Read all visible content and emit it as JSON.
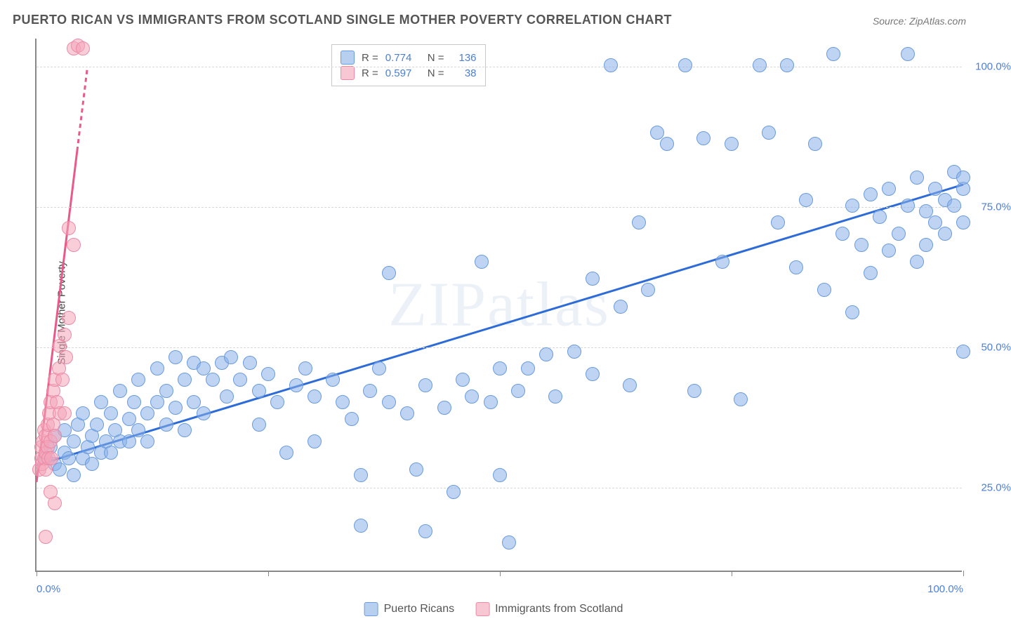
{
  "title": "PUERTO RICAN VS IMMIGRANTS FROM SCOTLAND SINGLE MOTHER POVERTY CORRELATION CHART",
  "source": "Source: ZipAtlas.com",
  "ylabel": "Single Mother Poverty",
  "watermark": "ZIPatlas",
  "chart": {
    "type": "scatter",
    "background_color": "#ffffff",
    "grid_color": "#d8d8d8",
    "axis_color": "#888888",
    "tick_label_color": "#4a7fd8",
    "tick_fontsize": 15,
    "title_fontsize": 18,
    "title_color": "#555555",
    "xlim": [
      0,
      100
    ],
    "ylim": [
      10,
      105
    ],
    "ytick_positions": [
      25,
      50,
      75,
      100
    ],
    "ytick_labels": [
      "25.0%",
      "50.0%",
      "75.0%",
      "100.0%"
    ],
    "xtick_positions": [
      0,
      25,
      50,
      75,
      100
    ],
    "xtick_labels_shown": {
      "0": "0.0%",
      "100": "100.0%"
    },
    "marker_radius": 10,
    "marker_stroke_width": 1.5,
    "trend_line_width": 3
  },
  "series": [
    {
      "name": "Puerto Ricans",
      "fill_color": "rgba(137, 176, 232, 0.55)",
      "stroke_color": "#6a9be0",
      "swatch_fill": "#b8d0f0",
      "swatch_border": "#6a9be0",
      "trend_color": "#2d6cd8",
      "R": "0.774",
      "N": "136",
      "trend": {
        "x1": 0,
        "y1": 29,
        "x2": 100,
        "y2": 79
      },
      "points": [
        [
          1,
          30
        ],
        [
          1.5,
          32
        ],
        [
          2,
          29
        ],
        [
          2,
          34
        ],
        [
          2.5,
          28
        ],
        [
          3,
          31
        ],
        [
          3,
          35
        ],
        [
          3.5,
          30
        ],
        [
          4,
          33
        ],
        [
          4,
          27
        ],
        [
          4.5,
          36
        ],
        [
          5,
          30
        ],
        [
          5,
          38
        ],
        [
          5.5,
          32
        ],
        [
          6,
          34
        ],
        [
          6,
          29
        ],
        [
          6.5,
          36
        ],
        [
          7,
          31
        ],
        [
          7,
          40
        ],
        [
          7.5,
          33
        ],
        [
          8,
          38
        ],
        [
          8,
          31
        ],
        [
          8.5,
          35
        ],
        [
          9,
          42
        ],
        [
          9,
          33
        ],
        [
          10,
          37
        ],
        [
          10,
          33
        ],
        [
          10.5,
          40
        ],
        [
          11,
          35
        ],
        [
          11,
          44
        ],
        [
          12,
          38
        ],
        [
          12,
          33
        ],
        [
          13,
          40
        ],
        [
          13,
          46
        ],
        [
          14,
          42
        ],
        [
          14,
          36
        ],
        [
          15,
          48
        ],
        [
          15,
          39
        ],
        [
          16,
          44
        ],
        [
          16,
          35
        ],
        [
          17,
          47
        ],
        [
          17,
          40
        ],
        [
          18,
          46
        ],
        [
          18,
          38
        ],
        [
          19,
          44
        ],
        [
          20,
          47
        ],
        [
          20.5,
          41
        ],
        [
          21,
          48
        ],
        [
          22,
          44
        ],
        [
          23,
          47
        ],
        [
          24,
          42
        ],
        [
          24,
          36
        ],
        [
          25,
          45
        ],
        [
          26,
          40
        ],
        [
          27,
          31
        ],
        [
          28,
          43
        ],
        [
          29,
          46
        ],
        [
          30,
          41
        ],
        [
          30,
          33
        ],
        [
          32,
          44
        ],
        [
          33,
          40
        ],
        [
          34,
          37
        ],
        [
          35,
          18
        ],
        [
          35,
          27
        ],
        [
          36,
          42
        ],
        [
          37,
          46
        ],
        [
          38,
          40
        ],
        [
          38,
          63
        ],
        [
          40,
          38
        ],
        [
          41,
          28
        ],
        [
          42,
          43
        ],
        [
          42,
          17
        ],
        [
          44,
          39
        ],
        [
          45,
          24
        ],
        [
          46,
          44
        ],
        [
          47,
          41
        ],
        [
          48,
          65
        ],
        [
          49,
          40
        ],
        [
          50,
          46
        ],
        [
          50,
          27
        ],
        [
          51,
          15
        ],
        [
          52,
          42
        ],
        [
          53,
          46
        ],
        [
          55,
          48.5
        ],
        [
          56,
          41
        ],
        [
          58,
          49
        ],
        [
          60,
          62
        ],
        [
          60,
          45
        ],
        [
          62,
          100
        ],
        [
          63,
          57
        ],
        [
          64,
          43
        ],
        [
          65,
          72
        ],
        [
          66,
          60
        ],
        [
          67,
          88
        ],
        [
          68,
          86
        ],
        [
          70,
          100
        ],
        [
          71,
          42
        ],
        [
          72,
          87
        ],
        [
          74,
          65
        ],
        [
          75,
          86
        ],
        [
          76,
          40.5
        ],
        [
          78,
          100
        ],
        [
          79,
          88
        ],
        [
          80,
          72
        ],
        [
          81,
          100
        ],
        [
          82,
          64
        ],
        [
          83,
          76
        ],
        [
          84,
          86
        ],
        [
          85,
          60
        ],
        [
          86,
          102
        ],
        [
          87,
          70
        ],
        [
          88,
          75
        ],
        [
          88,
          56
        ],
        [
          89,
          68
        ],
        [
          90,
          77
        ],
        [
          90,
          63
        ],
        [
          91,
          73
        ],
        [
          92,
          78
        ],
        [
          92,
          67
        ],
        [
          93,
          70
        ],
        [
          94,
          75
        ],
        [
          94,
          102
        ],
        [
          95,
          65
        ],
        [
          95,
          80
        ],
        [
          96,
          74
        ],
        [
          96,
          68
        ],
        [
          97,
          78
        ],
        [
          97,
          72
        ],
        [
          98,
          76
        ],
        [
          98,
          70
        ],
        [
          99,
          81
        ],
        [
          99,
          75
        ],
        [
          100,
          78
        ],
        [
          100,
          72
        ],
        [
          100,
          80
        ],
        [
          100,
          49
        ]
      ]
    },
    {
      "name": "Immigrants from Scotland",
      "fill_color": "rgba(244, 166, 186, 0.55)",
      "stroke_color": "#ec8aa6",
      "swatch_fill": "#f7c8d4",
      "swatch_border": "#ec8aa6",
      "trend_color": "#e85a87",
      "R": "0.597",
      "N": "38",
      "trend": {
        "x1": 0,
        "y1": 26,
        "x2": 5.5,
        "y2": 100
      },
      "trend_dash_above": 85,
      "points": [
        [
          0.3,
          28
        ],
        [
          0.5,
          30
        ],
        [
          0.5,
          32
        ],
        [
          0.6,
          29
        ],
        [
          0.7,
          33
        ],
        [
          0.8,
          30
        ],
        [
          0.8,
          35
        ],
        [
          1,
          31
        ],
        [
          1,
          28
        ],
        [
          1,
          34
        ],
        [
          1.2,
          32
        ],
        [
          1.2,
          36
        ],
        [
          1.3,
          30
        ],
        [
          1.4,
          38
        ],
        [
          1.5,
          33
        ],
        [
          1.5,
          40
        ],
        [
          1.6,
          30
        ],
        [
          1.8,
          36
        ],
        [
          1.8,
          42
        ],
        [
          2,
          34
        ],
        [
          2,
          44
        ],
        [
          2,
          22
        ],
        [
          2.2,
          40
        ],
        [
          2.4,
          46
        ],
        [
          2.5,
          38
        ],
        [
          2.5,
          50
        ],
        [
          2.8,
          44
        ],
        [
          3,
          52
        ],
        [
          3,
          38
        ],
        [
          3.2,
          48
        ],
        [
          3.5,
          71
        ],
        [
          3.5,
          55
        ],
        [
          4,
          68
        ],
        [
          4,
          103
        ],
        [
          4.5,
          103.5
        ],
        [
          5,
          103
        ],
        [
          1,
          16
        ],
        [
          1.5,
          24
        ]
      ]
    }
  ],
  "bottom_legend": {
    "items": [
      {
        "label": "Puerto Ricans",
        "series_index": 0
      },
      {
        "label": "Immigrants from Scotland",
        "series_index": 1
      }
    ]
  }
}
